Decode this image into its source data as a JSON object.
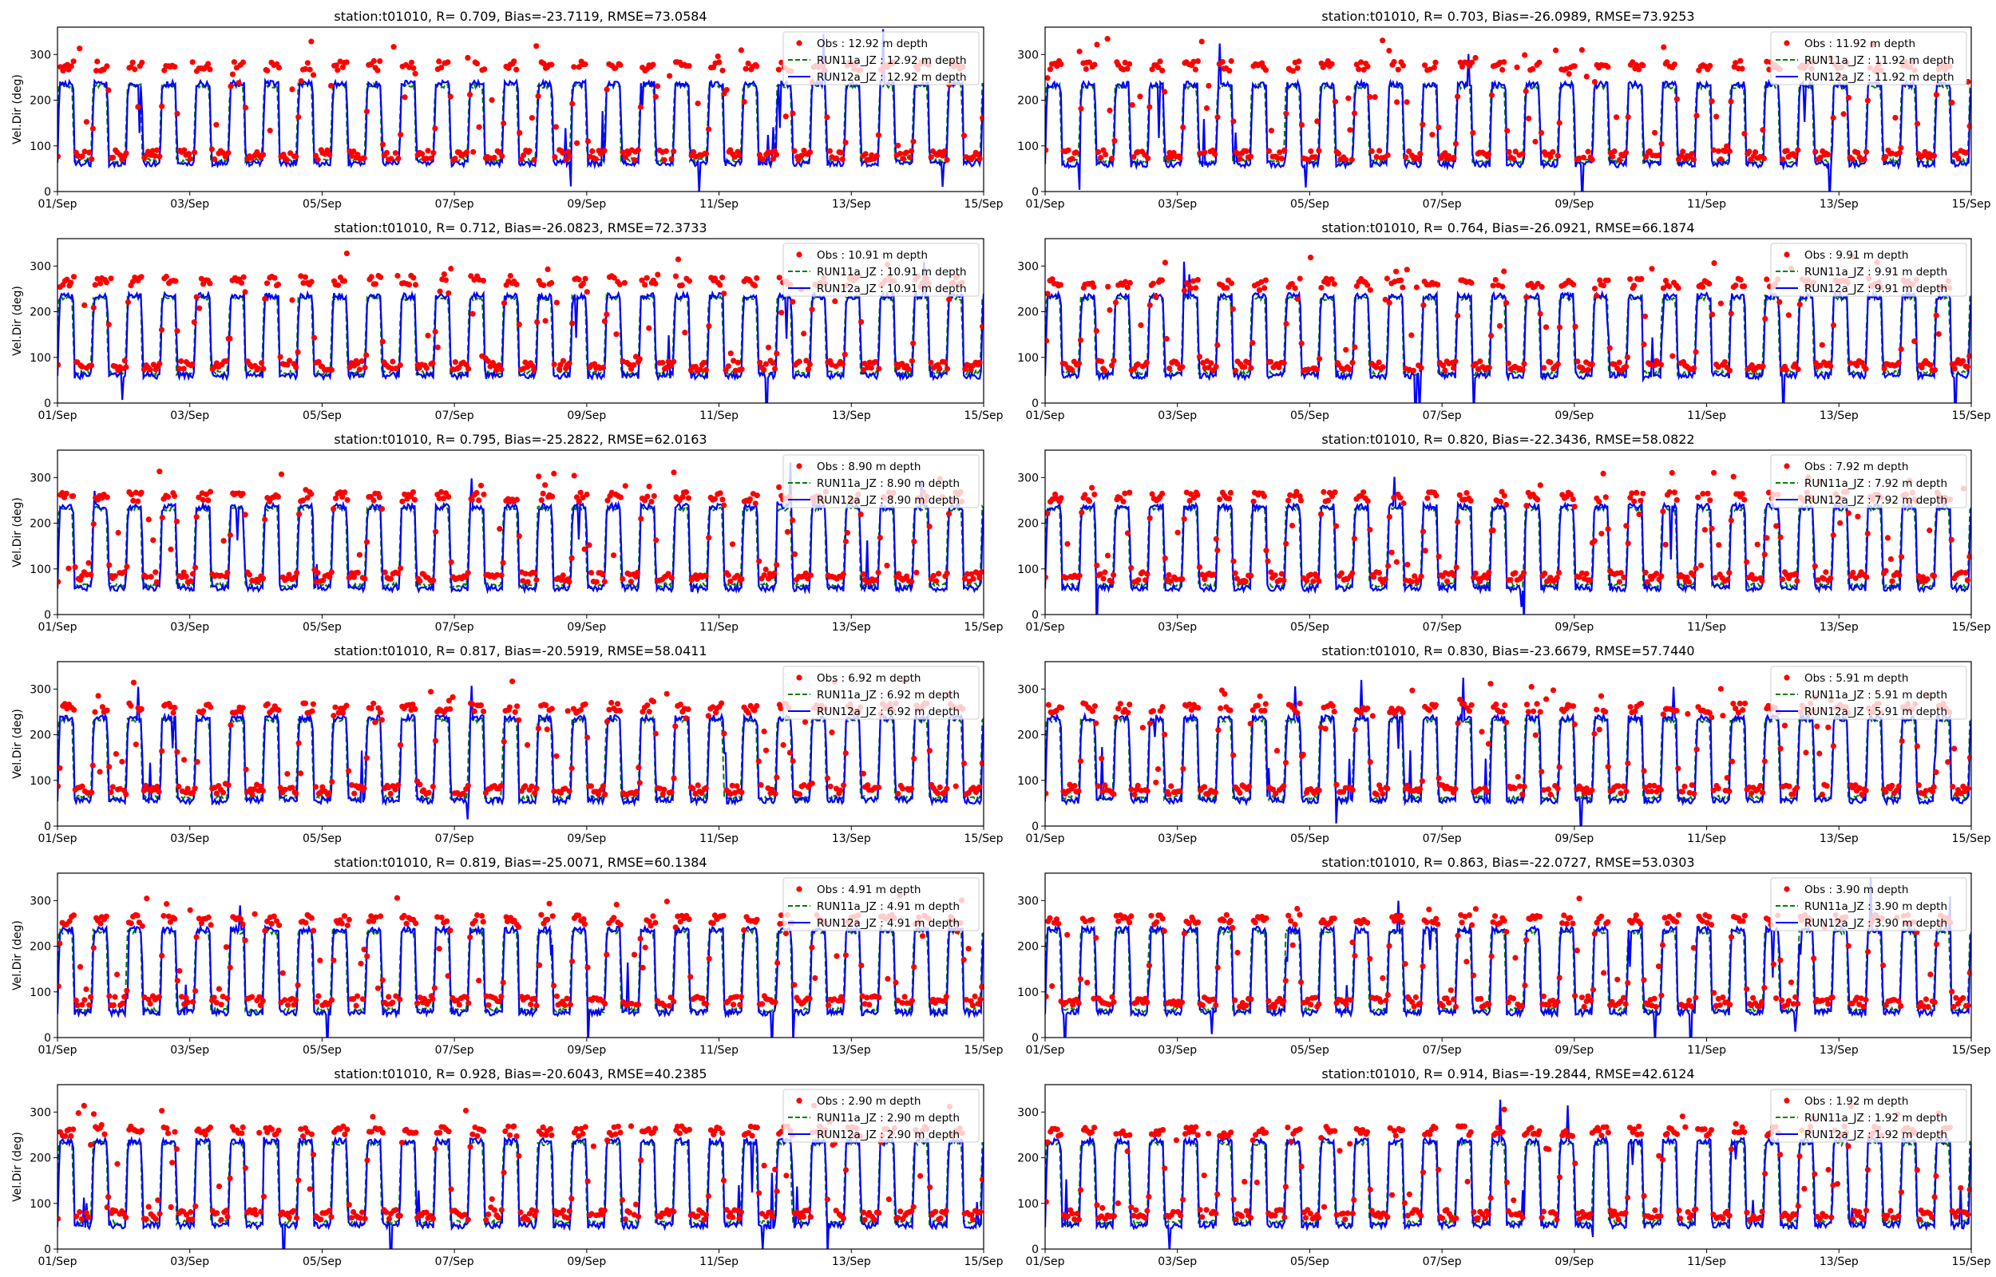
{
  "figure": {
    "common": {
      "type": "line",
      "ylabel": "Vel.Dir (deg)",
      "x_ticks": [
        "01/Sep",
        "03/Sep",
        "05/Sep",
        "07/Sep",
        "09/Sep",
        "11/Sep",
        "13/Sep",
        "15/Sep"
      ],
      "y_ticks": [
        0,
        100,
        200,
        300
      ],
      "xlim": [
        "2019-09-01",
        "2019-09-15"
      ],
      "ylim": [
        0,
        360
      ],
      "grid": false,
      "legend_placement": "upper right",
      "colors": {
        "obs": "#ff0000",
        "run11a": "#008000",
        "run12a": "#0000ff"
      }
    }
  },
  "chart_data": [
    {
      "type": "line",
      "title": "station:t01010, R= 0.709, Bias=-23.7119, RMSE=73.0584",
      "xlabel": "",
      "ylabel": "Vel.Dir (deg)",
      "ylim": [
        0,
        360
      ],
      "series": [
        {
          "name": "Obs : 12.92 m depth",
          "style": "points",
          "color": "#ff0000",
          "low": 80,
          "high": 275
        },
        {
          "name": "RUN11a_JZ : 12.92 m depth",
          "style": "dashed",
          "color": "#008000",
          "low": 68,
          "high": 232
        },
        {
          "name": "RUN12a_JZ : 12.92 m depth",
          "style": "solid",
          "color": "#0000ff",
          "low": 62,
          "high": 236
        }
      ]
    },
    {
      "type": "line",
      "title": "station:t01010, R= 0.703, Bias=-26.0989, RMSE=73.9253",
      "xlabel": "",
      "ylabel": "",
      "ylim": [
        0,
        360
      ],
      "series": [
        {
          "name": "Obs : 11.92 m depth",
          "style": "points",
          "color": "#ff0000",
          "low": 80,
          "high": 275
        },
        {
          "name": "RUN11a_JZ : 11.92 m depth",
          "style": "dashed",
          "color": "#008000",
          "low": 66,
          "high": 230
        },
        {
          "name": "RUN12a_JZ : 11.92 m depth",
          "style": "solid",
          "color": "#0000ff",
          "low": 60,
          "high": 234
        }
      ]
    },
    {
      "type": "line",
      "title": "station:t01010, R= 0.712, Bias=-26.0823, RMSE=72.3733",
      "xlabel": "",
      "ylabel": "Vel.Dir (deg)",
      "ylim": [
        0,
        360
      ],
      "series": [
        {
          "name": "Obs : 10.91 m depth",
          "style": "points",
          "color": "#ff0000",
          "low": 82,
          "high": 268
        },
        {
          "name": "RUN11a_JZ : 10.91 m depth",
          "style": "dashed",
          "color": "#008000",
          "low": 66,
          "high": 230
        },
        {
          "name": "RUN12a_JZ : 10.91 m depth",
          "style": "solid",
          "color": "#0000ff",
          "low": 60,
          "high": 234
        }
      ]
    },
    {
      "type": "line",
      "title": "station:t01010, R= 0.764, Bias=-26.0921, RMSE=66.1874",
      "xlabel": "",
      "ylabel": "",
      "ylim": [
        0,
        360
      ],
      "series": [
        {
          "name": "Obs : 9.91 m depth",
          "style": "points",
          "color": "#ff0000",
          "low": 82,
          "high": 262
        },
        {
          "name": "RUN11a_JZ : 9.91 m depth",
          "style": "dashed",
          "color": "#008000",
          "low": 66,
          "high": 230
        },
        {
          "name": "RUN12a_JZ : 9.91 m depth",
          "style": "solid",
          "color": "#0000ff",
          "low": 60,
          "high": 234
        }
      ]
    },
    {
      "type": "line",
      "title": "station:t01010, R= 0.795, Bias=-25.2822, RMSE=62.0163",
      "xlabel": "",
      "ylabel": "Vel.Dir (deg)",
      "ylim": [
        0,
        360
      ],
      "series": [
        {
          "name": "Obs : 8.90 m depth",
          "style": "points",
          "color": "#ff0000",
          "low": 82,
          "high": 258
        },
        {
          "name": "RUN11a_JZ : 8.90 m depth",
          "style": "dashed",
          "color": "#008000",
          "low": 64,
          "high": 232
        },
        {
          "name": "RUN12a_JZ : 8.90 m depth",
          "style": "solid",
          "color": "#0000ff",
          "low": 58,
          "high": 236
        }
      ]
    },
    {
      "type": "line",
      "title": "station:t01010, R= 0.820, Bias=-22.3436, RMSE=58.0822",
      "xlabel": "",
      "ylabel": "",
      "ylim": [
        0,
        360
      ],
      "series": [
        {
          "name": "Obs : 7.92 m depth",
          "style": "points",
          "color": "#ff0000",
          "low": 82,
          "high": 258
        },
        {
          "name": "RUN11a_JZ : 7.92 m depth",
          "style": "dashed",
          "color": "#008000",
          "low": 64,
          "high": 232
        },
        {
          "name": "RUN12a_JZ : 7.92 m depth",
          "style": "solid",
          "color": "#0000ff",
          "low": 58,
          "high": 236
        }
      ]
    },
    {
      "type": "line",
      "title": "station:t01010, R= 0.817, Bias=-20.5919, RMSE=58.0411",
      "xlabel": "",
      "ylabel": "Vel.Dir (deg)",
      "ylim": [
        0,
        360
      ],
      "series": [
        {
          "name": "Obs : 6.92 m depth",
          "style": "points",
          "color": "#ff0000",
          "low": 80,
          "high": 258
        },
        {
          "name": "RUN11a_JZ : 6.92 m depth",
          "style": "dashed",
          "color": "#008000",
          "low": 62,
          "high": 232
        },
        {
          "name": "RUN12a_JZ : 6.92 m depth",
          "style": "solid",
          "color": "#0000ff",
          "low": 56,
          "high": 236
        }
      ]
    },
    {
      "type": "line",
      "title": "station:t01010, R= 0.830, Bias=-23.6679, RMSE=57.7440",
      "xlabel": "",
      "ylabel": "",
      "ylim": [
        0,
        360
      ],
      "series": [
        {
          "name": "Obs : 5.91 m depth",
          "style": "points",
          "color": "#ff0000",
          "low": 80,
          "high": 258
        },
        {
          "name": "RUN11a_JZ : 5.91 m depth",
          "style": "dashed",
          "color": "#008000",
          "low": 62,
          "high": 232
        },
        {
          "name": "RUN12a_JZ : 5.91 m depth",
          "style": "solid",
          "color": "#0000ff",
          "low": 56,
          "high": 236
        }
      ]
    },
    {
      "type": "line",
      "title": "station:t01010, R= 0.819, Bias=-25.0071, RMSE=60.1384",
      "xlabel": "",
      "ylabel": "Vel.Dir (deg)",
      "ylim": [
        0,
        360
      ],
      "series": [
        {
          "name": "Obs : 4.91 m depth",
          "style": "points",
          "color": "#ff0000",
          "low": 80,
          "high": 258
        },
        {
          "name": "RUN11a_JZ : 4.91 m depth",
          "style": "dashed",
          "color": "#008000",
          "low": 60,
          "high": 232
        },
        {
          "name": "RUN12a_JZ : 4.91 m depth",
          "style": "solid",
          "color": "#0000ff",
          "low": 55,
          "high": 236
        }
      ]
    },
    {
      "type": "line",
      "title": "station:t01010, R= 0.863, Bias=-22.0727, RMSE=53.0303",
      "xlabel": "",
      "ylabel": "",
      "ylim": [
        0,
        360
      ],
      "series": [
        {
          "name": "Obs : 3.90 m depth",
          "style": "points",
          "color": "#ff0000",
          "low": 78,
          "high": 258
        },
        {
          "name": "RUN11a_JZ : 3.90 m depth",
          "style": "dashed",
          "color": "#008000",
          "low": 60,
          "high": 232
        },
        {
          "name": "RUN12a_JZ : 3.90 m depth",
          "style": "solid",
          "color": "#0000ff",
          "low": 55,
          "high": 236
        }
      ]
    },
    {
      "type": "line",
      "title": "station:t01010, R= 0.928, Bias=-20.6043, RMSE=40.2385",
      "xlabel": "",
      "ylabel": "Vel.Dir (deg)",
      "ylim": [
        0,
        360
      ],
      "series": [
        {
          "name": "Obs : 2.90 m depth",
          "style": "points",
          "color": "#ff0000",
          "low": 75,
          "high": 258
        },
        {
          "name": "RUN11a_JZ : 2.90 m depth",
          "style": "dashed",
          "color": "#008000",
          "low": 58,
          "high": 232
        },
        {
          "name": "RUN12a_JZ : 2.90 m depth",
          "style": "solid",
          "color": "#0000ff",
          "low": 52,
          "high": 236
        }
      ]
    },
    {
      "type": "line",
      "title": "station:t01010, R= 0.914, Bias=-19.2844, RMSE=42.6124",
      "xlabel": "",
      "ylabel": "",
      "ylim": [
        0,
        360
      ],
      "series": [
        {
          "name": "Obs : 1.92 m depth",
          "style": "points",
          "color": "#ff0000",
          "low": 75,
          "high": 258
        },
        {
          "name": "RUN11a_JZ : 1.92 m depth",
          "style": "dashed",
          "color": "#008000",
          "low": 58,
          "high": 232
        },
        {
          "name": "RUN12a_JZ : 1.92 m depth",
          "style": "solid",
          "color": "#0000ff",
          "low": 52,
          "high": 236
        }
      ]
    }
  ]
}
